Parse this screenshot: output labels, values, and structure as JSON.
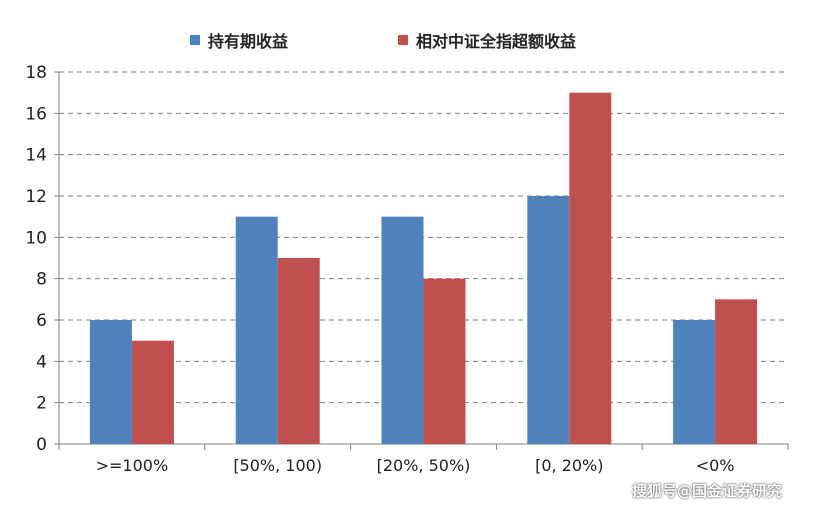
{
  "chart_data": {
    "type": "bar",
    "title": "",
    "xlabel": "",
    "ylabel": "",
    "categories": [
      ">=100%",
      "[50%, 100)",
      "[20%, 50%)",
      "[0, 20%)",
      "<0%"
    ],
    "series": [
      {
        "name": "持有期收益",
        "values": [
          6,
          11,
          11,
          12,
          6
        ],
        "color": "#4f81bd"
      },
      {
        "name": "相对中证全指超额收益",
        "values": [
          5,
          9,
          8,
          17,
          7
        ],
        "color": "#c0504d"
      }
    ],
    "ylim": [
      0,
      18
    ],
    "yticks": [
      0,
      2,
      4,
      6,
      8,
      10,
      12,
      14,
      16,
      18
    ],
    "grid": true,
    "legend_position": "top"
  },
  "watermark": "搜狐号@国金证券研究"
}
